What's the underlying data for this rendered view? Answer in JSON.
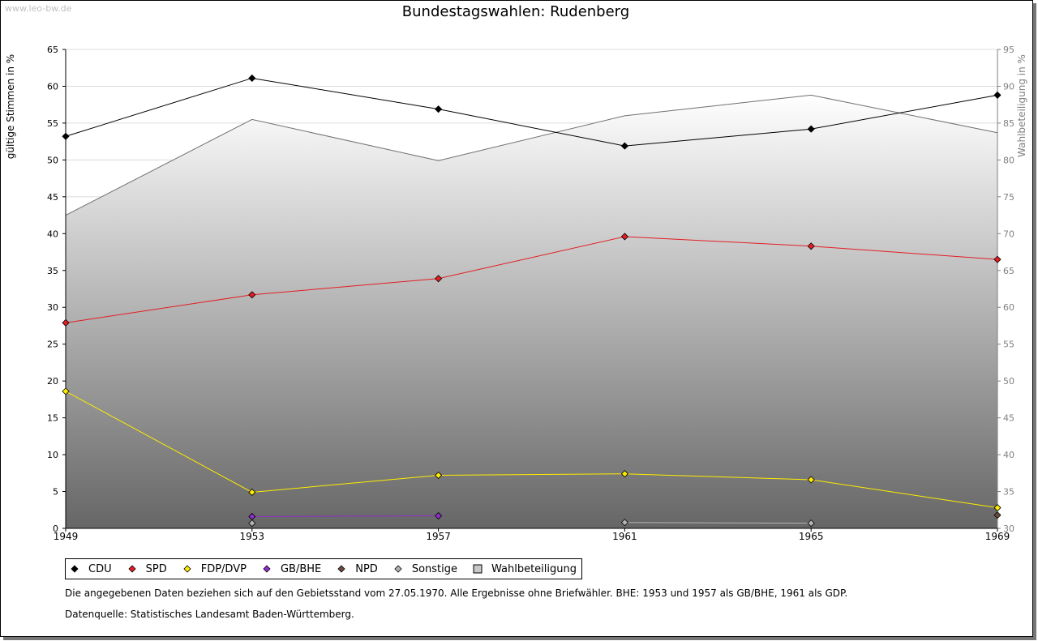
{
  "watermark": "www.leo-bw.de",
  "title": "Bundestagswahlen: Rudenberg",
  "notes": {
    "line1": "Die angegebenen Daten beziehen sich auf den Gebietsstand vom 27.05.1970. Alle Ergebnisse ohne Briefwähler. BHE: 1953 und 1957 als GB/BHE, 1961 als GDP.",
    "line2": "Datenquelle: Statistisches Landesamt Baden-Württemberg."
  },
  "chart_data": {
    "type": "line",
    "title": "Bundestagswahlen: Rudenberg",
    "x": [
      1949,
      1953,
      1957,
      1961,
      1965,
      1969
    ],
    "xlabel": "",
    "ylabel": "gültige Stimmen in %",
    "ylim": [
      0,
      65
    ],
    "yticks": [
      0,
      5,
      10,
      15,
      20,
      25,
      30,
      35,
      40,
      45,
      50,
      55,
      60,
      65
    ],
    "y2label": "Wahlbeteiligung in %",
    "y2lim": [
      30,
      95
    ],
    "y2ticks": [
      30,
      35,
      40,
      45,
      50,
      55,
      60,
      65,
      70,
      75,
      80,
      85,
      90,
      95
    ],
    "grid": true,
    "legend_position": "bottom",
    "series": [
      {
        "name": "CDU",
        "color": "#000000",
        "values": [
          53.2,
          61.1,
          56.9,
          51.9,
          54.2,
          58.8
        ]
      },
      {
        "name": "SPD",
        "color": "#e31e24",
        "values": [
          27.9,
          31.7,
          33.9,
          39.6,
          38.3,
          36.5
        ]
      },
      {
        "name": "FDP/DVP",
        "color": "#ffed00",
        "values": [
          18.6,
          4.9,
          7.2,
          7.4,
          6.6,
          2.8
        ]
      },
      {
        "name": "GB/BHE",
        "color": "#8e2fc9",
        "values": [
          null,
          1.6,
          1.7,
          null,
          null,
          null
        ]
      },
      {
        "name": "NPD",
        "color": "#6b4b3e",
        "values": [
          null,
          null,
          null,
          null,
          null,
          1.8
        ]
      },
      {
        "name": "Sonstige",
        "color": "#b4b4b4",
        "values": [
          null,
          0.7,
          null,
          0.8,
          0.7,
          null
        ]
      },
      {
        "name": "Wahlbeteiligung",
        "color": "#a0a0a0",
        "axis": "right",
        "values": [
          72.5,
          85.5,
          79.9,
          86.0,
          88.8,
          83.7
        ]
      }
    ]
  }
}
